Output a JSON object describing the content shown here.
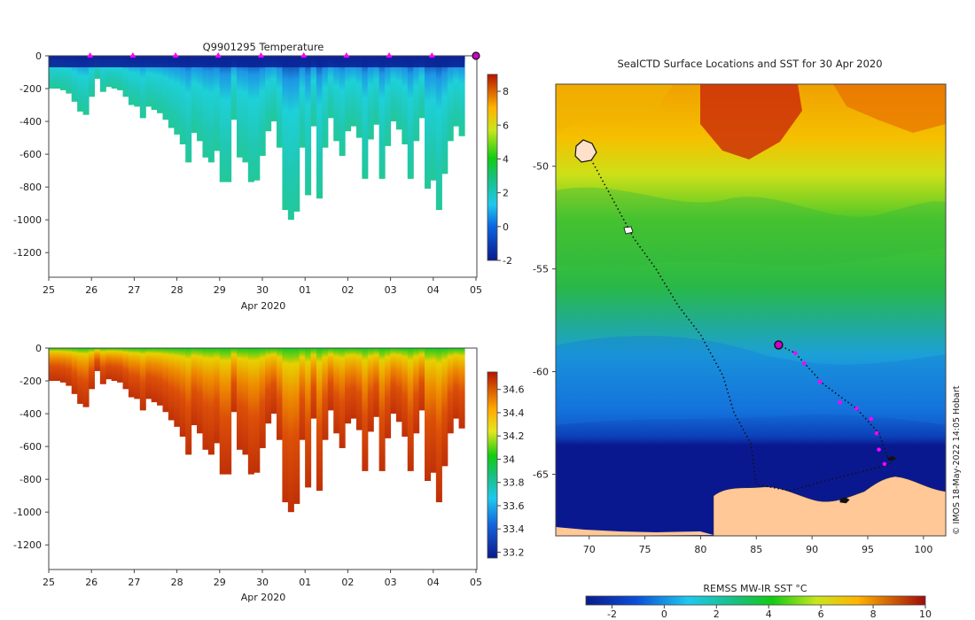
{
  "chart_data": [
    {
      "type": "heatmap",
      "title": "Q9901295  Temperature",
      "xlabel": "Apr 2020",
      "ylabel": "",
      "x_ticks": [
        "25",
        "26",
        "27",
        "28",
        "29",
        "30",
        "01",
        "02",
        "03",
        "04",
        "05"
      ],
      "y_ticks": [
        "0",
        "-200",
        "-400",
        "-600",
        "-800",
        "-1000",
        "-1200"
      ],
      "ylim": [
        -1350,
        0
      ],
      "colorbar": {
        "ticks": [
          "-2",
          "0",
          "2",
          "4",
          "6",
          "8"
        ],
        "range": [
          -2,
          9
        ]
      },
      "profile_dive_depths_m": [
        200,
        200,
        210,
        230,
        280,
        340,
        360,
        250,
        140,
        220,
        190,
        200,
        210,
        250,
        300,
        310,
        380,
        310,
        330,
        350,
        390,
        440,
        480,
        540,
        650,
        470,
        520,
        620,
        650,
        580,
        770,
        770,
        390,
        620,
        650,
        770,
        760,
        610,
        460,
        400,
        560,
        940,
        1000,
        950,
        560,
        850,
        430,
        870,
        560,
        380,
        520,
        610,
        460,
        430,
        500,
        750,
        510,
        420,
        750,
        550,
        400,
        450,
        540,
        750,
        520,
        380,
        810,
        760,
        940,
        720,
        520,
        430,
        490
      ],
      "surface_markers": [
        "26",
        "27",
        "28",
        "29",
        "30",
        "01",
        "02",
        "03",
        "04"
      ],
      "marker_color": "#ff00ff"
    },
    {
      "type": "heatmap",
      "title": "",
      "xlabel": "Apr 2020",
      "ylabel": "",
      "x_ticks": [
        "25",
        "26",
        "27",
        "28",
        "29",
        "30",
        "01",
        "02",
        "03",
        "04",
        "05"
      ],
      "y_ticks": [
        "0",
        "-200",
        "-400",
        "-600",
        "-800",
        "-1000",
        "-1200"
      ],
      "ylim": [
        -1350,
        0
      ],
      "colorbar": {
        "ticks": [
          "33.2",
          "33.4",
          "33.6",
          "33.8",
          "34",
          "34.2",
          "34.4",
          "34.6"
        ],
        "range": [
          33.15,
          34.75
        ]
      }
    },
    {
      "type": "heatmap",
      "title": "SealCTD Surface Locations and SST for 30 Apr 2020",
      "x_ticks": [
        "70",
        "75",
        "80",
        "85",
        "90",
        "95",
        "100"
      ],
      "y_ticks": [
        "-50",
        "-55",
        "-60",
        "-65"
      ],
      "xlim": [
        67,
        102
      ],
      "ylim": [
        -68,
        -46
      ],
      "colorbar_label": "REMSS MW-IR SST °C",
      "colorbar": {
        "ticks": [
          "-2",
          "0",
          "2",
          "4",
          "6",
          "8",
          "10"
        ],
        "range": [
          -3,
          10
        ]
      },
      "current_position": [
        87,
        -58.7
      ],
      "track_start": [
        70,
        -49.5
      ],
      "recent_positions": [
        [
          88.5,
          -59.1
        ],
        [
          89.3,
          -59.6
        ],
        [
          90.7,
          -60.5
        ],
        [
          92.5,
          -61.5
        ],
        [
          94,
          -61.8
        ],
        [
          95.3,
          -62.3
        ],
        [
          95.8,
          -63
        ],
        [
          96,
          -63.8
        ],
        [
          96.5,
          -64.5
        ]
      ],
      "credit": "© IMOS 18-May-2022 14:05 Hobart"
    }
  ]
}
